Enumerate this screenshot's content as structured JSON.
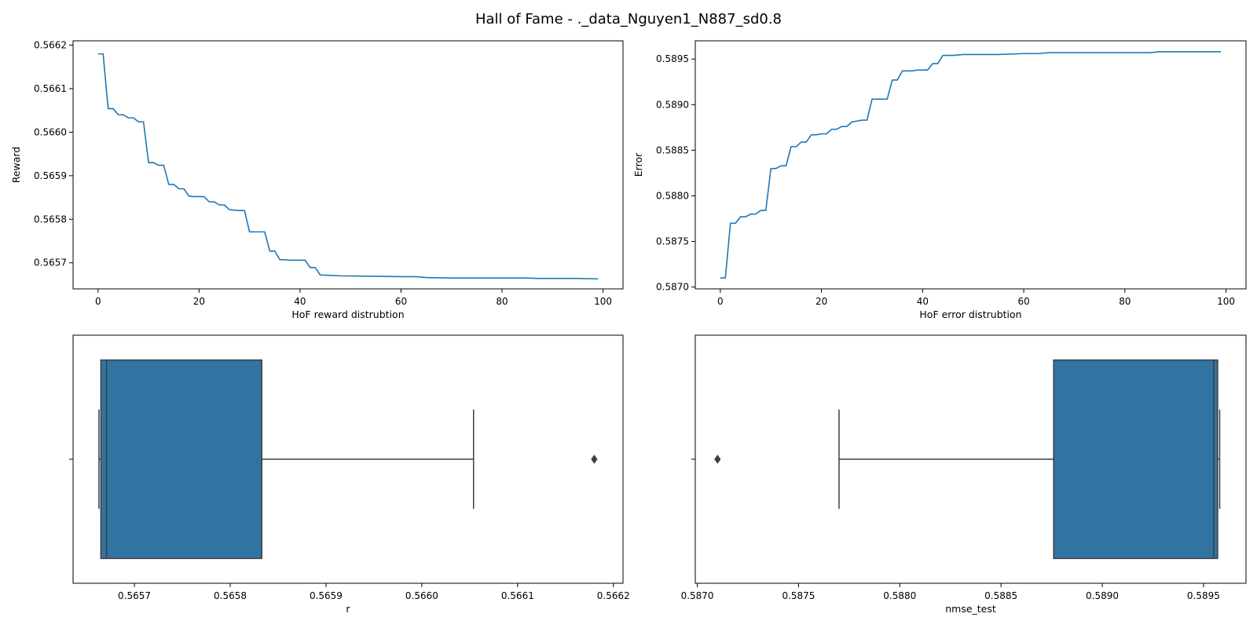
{
  "title": "Hall of Fame - ._data_Nguyen1_N887_sd0.8",
  "colors": {
    "line": "#1f77b4",
    "box_fill": "#3274a1",
    "box_edge": "#3f3f3f",
    "axes": "#000000"
  },
  "chart_data": [
    {
      "type": "line",
      "panel": "top-left",
      "xlabel": "HoF reward distrubtion",
      "ylabel": "Reward",
      "xlim": [
        -4.95,
        103.95
      ],
      "ylim": [
        0.56564,
        0.56621
      ],
      "xticks": [
        0,
        20,
        40,
        60,
        80,
        100
      ],
      "xtick_labels": [
        "0",
        "20",
        "40",
        "60",
        "80",
        "100"
      ],
      "yticks": [
        0.5657,
        0.5658,
        0.5659,
        0.566,
        0.5661,
        0.5662
      ],
      "ytick_labels": [
        "0.5657",
        "0.5658",
        "0.5659",
        "0.5660",
        "0.5661",
        "0.5662"
      ],
      "points": [
        [
          0,
          0.56618
        ],
        [
          1,
          0.56618
        ],
        [
          2,
          0.566054
        ],
        [
          3,
          0.566054
        ],
        [
          4,
          0.56604
        ],
        [
          5,
          0.56604
        ],
        [
          6,
          0.566033
        ],
        [
          7,
          0.566033
        ],
        [
          8,
          0.566024
        ],
        [
          9,
          0.566024
        ],
        [
          10,
          0.56593
        ],
        [
          11,
          0.56593
        ],
        [
          12,
          0.565924
        ],
        [
          13,
          0.565924
        ],
        [
          14,
          0.56588
        ],
        [
          15,
          0.56588
        ],
        [
          16,
          0.56587
        ],
        [
          17,
          0.56587
        ],
        [
          18,
          0.565853
        ],
        [
          19,
          0.565852
        ],
        [
          20,
          0.565852
        ],
        [
          21,
          0.565852
        ],
        [
          22,
          0.56584
        ],
        [
          23,
          0.56584
        ],
        [
          24,
          0.565833
        ],
        [
          25,
          0.565833
        ],
        [
          26,
          0.565822
        ],
        [
          27,
          0.565821
        ],
        [
          28,
          0.56582
        ],
        [
          29,
          0.56582
        ],
        [
          30,
          0.565771
        ],
        [
          31,
          0.565771
        ],
        [
          32,
          0.565771
        ],
        [
          33,
          0.565771
        ],
        [
          34,
          0.565727
        ],
        [
          35,
          0.565727
        ],
        [
          36,
          0.565707
        ],
        [
          37,
          0.565707
        ],
        [
          38,
          0.565706
        ],
        [
          39,
          0.565706
        ],
        [
          40,
          0.565706
        ],
        [
          41,
          0.565706
        ],
        [
          42,
          0.565689
        ],
        [
          43,
          0.565689
        ],
        [
          44,
          0.565672
        ],
        [
          46,
          0.565671
        ],
        [
          48,
          0.56567
        ],
        [
          55,
          0.565669
        ],
        [
          60,
          0.565668
        ],
        [
          63,
          0.565668
        ],
        [
          65,
          0.565666
        ],
        [
          70,
          0.565665
        ],
        [
          80,
          0.565665
        ],
        [
          85,
          0.565665
        ],
        [
          87,
          0.565664
        ],
        [
          95,
          0.565664
        ],
        [
          99,
          0.565663
        ]
      ]
    },
    {
      "type": "line",
      "panel": "top-right",
      "xlabel": "HoF error distrubtion",
      "ylabel": "Error",
      "xlim": [
        -4.95,
        103.95
      ],
      "ylim": [
        0.58698,
        0.5897
      ],
      "xticks": [
        0,
        20,
        40,
        60,
        80,
        100
      ],
      "xtick_labels": [
        "0",
        "20",
        "40",
        "60",
        "80",
        "100"
      ],
      "yticks": [
        0.587,
        0.5875,
        0.588,
        0.5885,
        0.589,
        0.5895
      ],
      "ytick_labels": [
        "0.5870",
        "0.5875",
        "0.5880",
        "0.5885",
        "0.5890",
        "0.5895"
      ],
      "points": [
        [
          0,
          0.5871
        ],
        [
          1,
          0.5871
        ],
        [
          2,
          0.5877
        ],
        [
          3,
          0.5877
        ],
        [
          4,
          0.58777
        ],
        [
          5,
          0.58777
        ],
        [
          6,
          0.5878
        ],
        [
          7,
          0.5878
        ],
        [
          8,
          0.58784
        ],
        [
          9,
          0.58784
        ],
        [
          10,
          0.5883
        ],
        [
          11,
          0.5883
        ],
        [
          12,
          0.58833
        ],
        [
          13,
          0.58833
        ],
        [
          14,
          0.58854
        ],
        [
          15,
          0.58854
        ],
        [
          16,
          0.58859
        ],
        [
          17,
          0.58859
        ],
        [
          18,
          0.58867
        ],
        [
          19,
          0.58867
        ],
        [
          20,
          0.58868
        ],
        [
          21,
          0.58868
        ],
        [
          22,
          0.58873
        ],
        [
          23,
          0.58873
        ],
        [
          24,
          0.58876
        ],
        [
          25,
          0.58876
        ],
        [
          26,
          0.58881
        ],
        [
          27,
          0.58882
        ],
        [
          28,
          0.58883
        ],
        [
          29,
          0.58883
        ],
        [
          30,
          0.58906
        ],
        [
          31,
          0.58906
        ],
        [
          32,
          0.58906
        ],
        [
          33,
          0.58906
        ],
        [
          34,
          0.58927
        ],
        [
          35,
          0.58927
        ],
        [
          36,
          0.58937
        ],
        [
          37,
          0.58937
        ],
        [
          38,
          0.58937
        ],
        [
          39,
          0.58938
        ],
        [
          40,
          0.58938
        ],
        [
          41,
          0.58938
        ],
        [
          42,
          0.58945
        ],
        [
          43,
          0.58945
        ],
        [
          44,
          0.58954
        ],
        [
          46,
          0.58954
        ],
        [
          48,
          0.58955
        ],
        [
          55,
          0.58955
        ],
        [
          60,
          0.58956
        ],
        [
          63,
          0.58956
        ],
        [
          65,
          0.58957
        ],
        [
          70,
          0.58957
        ],
        [
          80,
          0.58957
        ],
        [
          85,
          0.58957
        ],
        [
          87,
          0.58958
        ],
        [
          95,
          0.58958
        ],
        [
          99,
          0.58958
        ]
      ]
    },
    {
      "type": "box",
      "panel": "bottom-left",
      "xlabel": "r",
      "xlim": [
        0.565636,
        0.56621
      ],
      "xticks": [
        0.5657,
        0.5658,
        0.5659,
        0.566,
        0.5661,
        0.5662
      ],
      "xtick_labels": [
        "0.5657",
        "0.5658",
        "0.5659",
        "0.5660",
        "0.5661",
        "0.5662"
      ],
      "ytick_labels": [
        ""
      ],
      "min": 0.565663,
      "q1": 0.565665,
      "median": 0.565671,
      "q3": 0.565833,
      "max": 0.566054,
      "outliers": [
        0.56618
      ]
    },
    {
      "type": "box",
      "panel": "bottom-right",
      "xlabel": "nmse_test",
      "xlim": [
        0.58699,
        0.58971
      ],
      "xticks": [
        0.587,
        0.5875,
        0.588,
        0.5885,
        0.589,
        0.5895
      ],
      "xtick_labels": [
        "0.5870",
        "0.5875",
        "0.5880",
        "0.5885",
        "0.5890",
        "0.5895"
      ],
      "ytick_labels": [
        ""
      ],
      "min": 0.5877,
      "q1": 0.58876,
      "median": 0.58955,
      "q3": 0.58957,
      "max": 0.58958,
      "outliers": [
        0.5871
      ]
    }
  ]
}
